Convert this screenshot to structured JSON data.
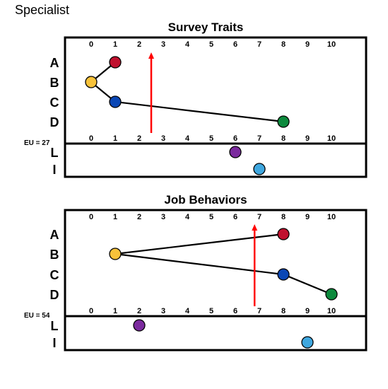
{
  "page_title": "Specialist",
  "colors": {
    "A": "#c0102e",
    "B": "#f7c23a",
    "C": "#0a47b5",
    "D": "#0d8a3d",
    "L": "#7b2a9e",
    "I": "#3fa7df",
    "arrow": "#ff0000",
    "line": "#000000"
  },
  "chart_data": [
    {
      "type": "scatter",
      "title": "Survey Traits",
      "eu_label": "EU = 27",
      "xlim": [
        0,
        10
      ],
      "x_ticks": [
        "0",
        "1",
        "2",
        "3",
        "4",
        "5",
        "6",
        "7",
        "8",
        "9",
        "10"
      ],
      "traits": [
        {
          "label": "A",
          "value": 1
        },
        {
          "label": "B",
          "value": 0
        },
        {
          "label": "C",
          "value": 1
        },
        {
          "label": "D",
          "value": 8
        }
      ],
      "lower_rows": [
        {
          "label": "L",
          "value": 6
        },
        {
          "label": "I",
          "value": 7
        }
      ],
      "arrow_value": 2.5
    },
    {
      "type": "scatter",
      "title": "Job Behaviors",
      "eu_label": "EU = 54",
      "xlim": [
        0,
        10
      ],
      "x_ticks": [
        "0",
        "1",
        "2",
        "3",
        "4",
        "5",
        "6",
        "7",
        "8",
        "9",
        "10"
      ],
      "traits": [
        {
          "label": "A",
          "value": 8
        },
        {
          "label": "B",
          "value": 1
        },
        {
          "label": "C",
          "value": 8
        },
        {
          "label": "D",
          "value": 10
        }
      ],
      "lower_rows": [
        {
          "label": "L",
          "value": 2
        },
        {
          "label": "I",
          "value": 9
        }
      ],
      "arrow_value": 6.8
    }
  ]
}
